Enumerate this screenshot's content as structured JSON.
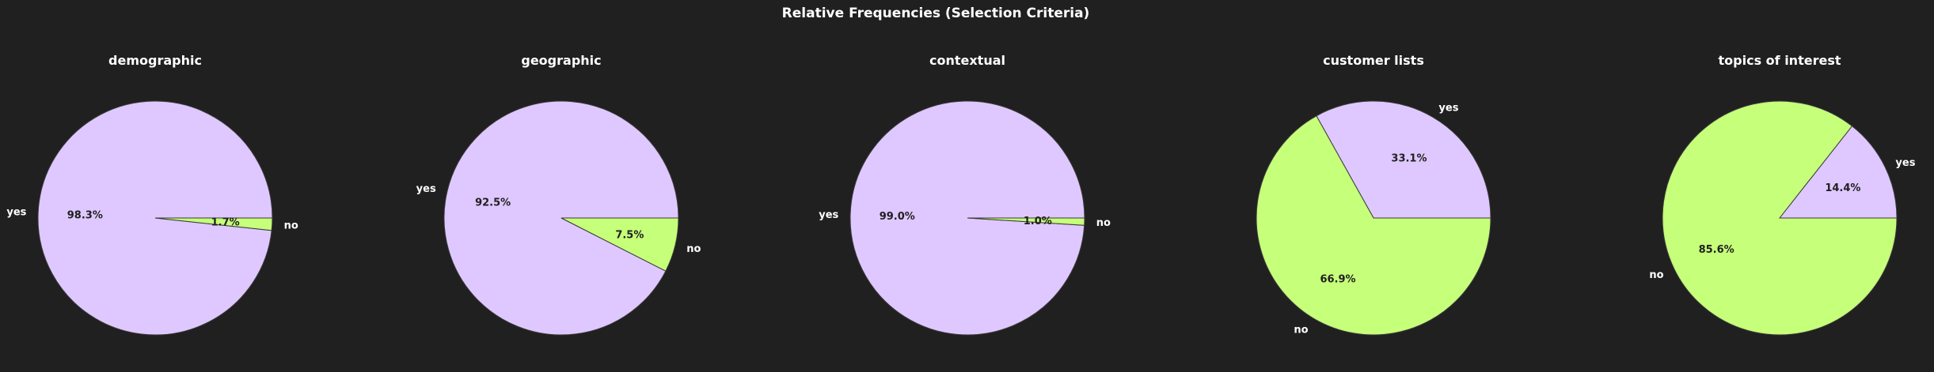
{
  "chart_data": {
    "type": "pie",
    "title": "Relative Frequencies (Selection Criteria)",
    "colors": {
      "yes": "#dfc8ff",
      "no": "#c6ff7a",
      "background": "#202020",
      "edge": "#3a3a3a"
    },
    "charts": [
      {
        "title": "demographic",
        "slices": [
          {
            "label": "yes",
            "value": 98.3,
            "pct_label": "98.3%"
          },
          {
            "label": "no",
            "value": 1.7,
            "pct_label": "1.7%"
          }
        ]
      },
      {
        "title": "geographic",
        "slices": [
          {
            "label": "yes",
            "value": 92.5,
            "pct_label": "92.5%"
          },
          {
            "label": "no",
            "value": 7.5,
            "pct_label": "7.5%"
          }
        ]
      },
      {
        "title": "contextual",
        "slices": [
          {
            "label": "yes",
            "value": 99.0,
            "pct_label": "99.0%"
          },
          {
            "label": "no",
            "value": 1.0,
            "pct_label": "1.0%"
          }
        ]
      },
      {
        "title": "customer lists",
        "slices": [
          {
            "label": "yes",
            "value": 33.1,
            "pct_label": "33.1%"
          },
          {
            "label": "no",
            "value": 66.9,
            "pct_label": "66.9%"
          }
        ]
      },
      {
        "title": "topics of interest",
        "slices": [
          {
            "label": "yes",
            "value": 14.4,
            "pct_label": "14.4%"
          },
          {
            "label": "no",
            "value": 85.6,
            "pct_label": "85.6%"
          }
        ]
      }
    ]
  }
}
